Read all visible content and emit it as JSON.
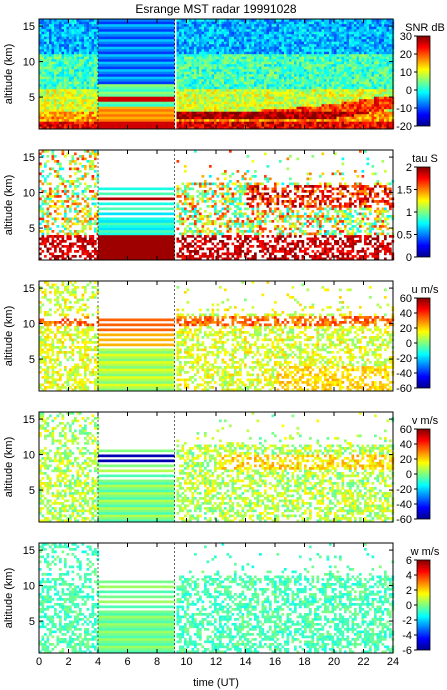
{
  "title": "Esrange MST radar 19991028",
  "x_axis": {
    "label": "time (UT)",
    "range": [
      0,
      24
    ],
    "ticks": [
      "0",
      "2",
      "4",
      "6",
      "8",
      "10",
      "12",
      "14",
      "16",
      "18",
      "20",
      "22",
      "24"
    ]
  },
  "chart_data": [
    {
      "type": "heatmap",
      "parameter": "SNR",
      "colorbar_label": "SNR dB",
      "ylabel": "altitude (km)",
      "ylim": [
        0.5,
        16
      ],
      "yticks": [
        "5",
        "10",
        "15"
      ],
      "zlim": [
        -20,
        30
      ],
      "zticks": [
        "-20",
        "-10",
        "0",
        "10",
        "20",
        "30"
      ],
      "data_gap_hours": [
        4,
        9.2
      ],
      "coverage": "full"
    },
    {
      "type": "heatmap",
      "parameter": "tau",
      "colorbar_label": "tau S",
      "ylabel": "altitude (km)",
      "ylim": [
        0.5,
        16
      ],
      "yticks": [
        "5",
        "10",
        "15"
      ],
      "zlim": [
        0,
        2
      ],
      "zticks": [
        "0",
        "0.5",
        "1",
        "1.5",
        "2"
      ],
      "data_gap_hours": [
        4,
        9.2
      ],
      "coverage": "sparse"
    },
    {
      "type": "heatmap",
      "parameter": "u",
      "colorbar_label": "u m/s",
      "ylabel": "altitude (km)",
      "ylim": [
        0.5,
        16
      ],
      "yticks": [
        "5",
        "10",
        "15"
      ],
      "zlim": [
        -60,
        60
      ],
      "zticks": [
        "-60",
        "-40",
        "-20",
        "0",
        "20",
        "40",
        "60"
      ],
      "data_gap_hours": [
        4,
        9.2
      ],
      "coverage": "sparse"
    },
    {
      "type": "heatmap",
      "parameter": "v",
      "colorbar_label": "v m/s",
      "ylabel": "altitude (km)",
      "ylim": [
        0.5,
        16
      ],
      "yticks": [
        "5",
        "10",
        "15"
      ],
      "zlim": [
        -60,
        60
      ],
      "zticks": [
        "-60",
        "-40",
        "-20",
        "0",
        "20",
        "40",
        "60"
      ],
      "data_gap_hours": [
        4,
        9.2
      ],
      "coverage": "sparse"
    },
    {
      "type": "heatmap",
      "parameter": "w",
      "colorbar_label": "w m/s",
      "ylabel": "altitude (km)",
      "ylim": [
        0.5,
        16
      ],
      "yticks": [
        "5",
        "10",
        "15"
      ],
      "zlim": [
        -6,
        6
      ],
      "zticks": [
        "-6",
        "-4",
        "-2",
        "0",
        "2",
        "4",
        "6"
      ],
      "data_gap_hours": [
        4,
        9.2
      ],
      "coverage": "sparse"
    }
  ]
}
